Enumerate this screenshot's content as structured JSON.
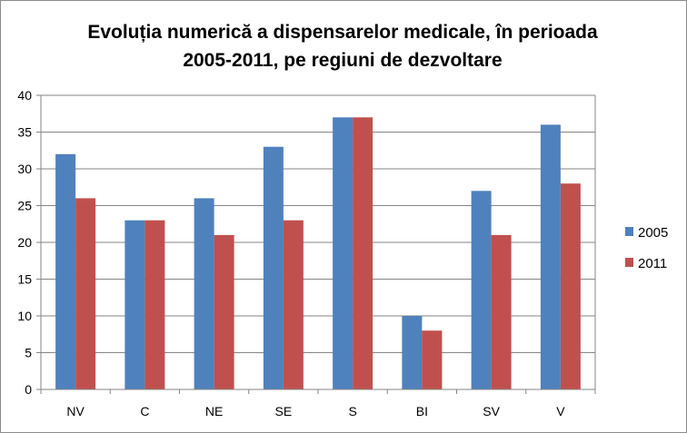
{
  "chart_data": {
    "type": "bar",
    "title_lines": [
      "Evoluția numerică a dispensarelor medicale, în perioada",
      "2005-2011, pe regiuni de dezvoltare"
    ],
    "xlabel": "",
    "ylabel": "",
    "categories": [
      "NV",
      "C",
      "NE",
      "SE",
      "S",
      "BI",
      "SV",
      "V"
    ],
    "series": [
      {
        "name": "2005",
        "color": "#4f81bd",
        "values": [
          32,
          23,
          26,
          33,
          37,
          10,
          27,
          36
        ]
      },
      {
        "name": "2011",
        "color": "#c0504d",
        "values": [
          26,
          23,
          21,
          23,
          37,
          8,
          21,
          28
        ]
      }
    ],
    "ylim": [
      0,
      40
    ],
    "yticks": [
      "0",
      "5",
      "10",
      "15",
      "20",
      "25",
      "30",
      "35",
      "40"
    ],
    "grid": true,
    "legend_position": "right"
  }
}
